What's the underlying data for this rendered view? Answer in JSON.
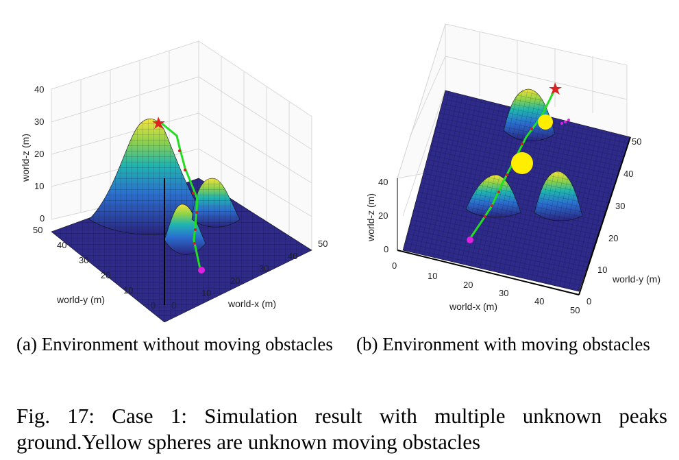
{
  "figures": [
    {
      "caption": "(a) Environment without moving obstacles",
      "axes": {
        "xlabel": "world-x (m)",
        "ylabel": "world-y (m)",
        "zlabel": "world-z (m)",
        "xticks": [
          "0",
          "10",
          "20",
          "30",
          "40",
          "50"
        ],
        "yticks": [
          "0",
          "10",
          "20",
          "30",
          "40",
          "50"
        ],
        "zticks": [
          "0",
          "10",
          "20",
          "30",
          "40"
        ]
      }
    },
    {
      "caption": "(b) Environment with moving obstacles",
      "axes": {
        "xlabel": "world-x (m)",
        "ylabel": "world-y (m)",
        "zlabel": "world-z (m)",
        "xticks": [
          "0",
          "10",
          "20",
          "30",
          "40",
          "50"
        ],
        "yticks": [
          "0",
          "10",
          "20",
          "30",
          "40",
          "50"
        ],
        "zticks": [
          "0",
          "20",
          "40"
        ]
      }
    }
  ],
  "caption": "Fig. 17: Case 1: Simulation result with multiple unknown peaks ground.Yellow spheres are unknown moving obstacles",
  "colors": {
    "surface_low": "#2a2580",
    "surface_mid": "#1fa0c8",
    "surface_high": "#f5e33c",
    "path": "#22dd22",
    "start": "#e020e0",
    "goal": "#dd2222",
    "obstacle": "#ffee00"
  }
}
